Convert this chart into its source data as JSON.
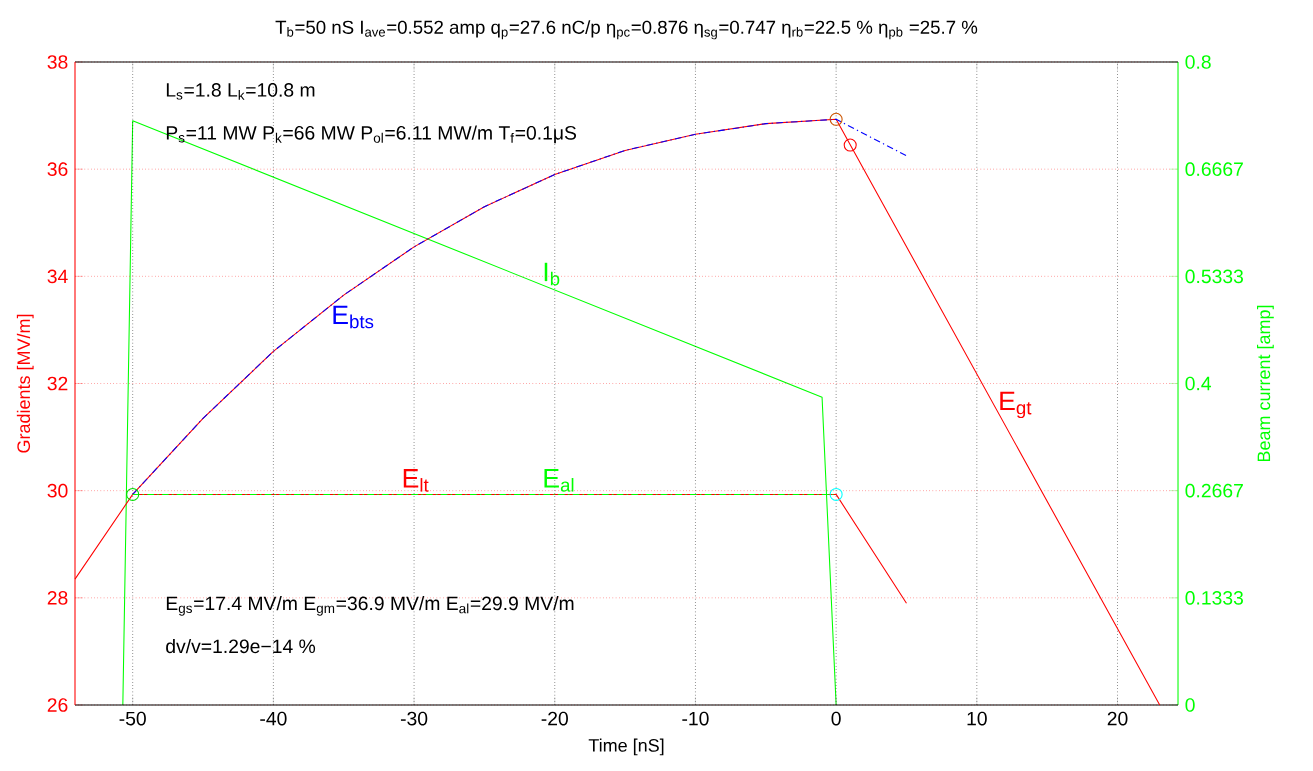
{
  "chart_data": {
    "type": "line",
    "title": "T$_{b}$=50 nS  I$_{ave}$=0.552 amp   q$_{p}$=27.6 nC/p  η$_{pc}$=0.876  η$_{sg}$=0.747  η$_{rb}$=22.5 %   η$_{pb}$ =25.7 %",
    "xlabel": "Time [nS]",
    "ylabel": "Gradients [MV/m]",
    "y2label": "Beam current [amp]",
    "annotations": [
      "L$_{s}$=1.8  L$_{k}$=10.8 m",
      "P$_{s}$=11 MW  P$_{k}$=66 MW   P$_{ol}$=6.11 MW/m  T$_{f}$=0.1μS",
      "E$_{gs}$=17.4 MV/m E$_{gm}$=36.9 MV/m   E$_{al}$=29.9 MV/m",
      "dv/v=1.29e−14 %"
    ],
    "xlim": [
      -54.1,
      24.3
    ],
    "xticks": [
      -50,
      -40,
      -30,
      -20,
      -10,
      0,
      10,
      20
    ],
    "ylim": [
      26,
      38
    ],
    "yticks": [
      26,
      28,
      30,
      32,
      34,
      36,
      38
    ],
    "y2lim": [
      0,
      0.8
    ],
    "y2ticks": [
      0,
      0.1333,
      0.2667,
      0.4,
      0.5333,
      0.6667,
      0.8
    ],
    "grid": true,
    "series": [
      {
        "name": "E$_{gt}$",
        "color": "#ff0000",
        "x": [
          -54.1,
          -50,
          -45,
          -40,
          -35,
          -30,
          -25,
          -20,
          -15,
          -10,
          -5,
          0,
          23
        ],
        "values": [
          28.35,
          29.93,
          31.35,
          32.6,
          33.65,
          34.55,
          35.3,
          35.9,
          36.35,
          36.65,
          36.85,
          36.93,
          26
        ]
      },
      {
        "name": "E$_{lt}$",
        "color": "#ff0000",
        "x": [
          -50,
          0,
          5
        ],
        "values": [
          29.93,
          29.93,
          27.9
        ]
      },
      {
        "name": "E$_{bts}$",
        "color": "#0000ff",
        "line_style": "dashed",
        "x": [
          -50,
          -45,
          -40,
          -35,
          -30,
          -25,
          -20,
          -15,
          -10,
          -5,
          0,
          5
        ],
        "values": [
          29.93,
          31.35,
          32.6,
          33.65,
          34.55,
          35.3,
          35.9,
          36.35,
          36.65,
          36.85,
          36.93,
          36.25
        ]
      },
      {
        "name": "E$_{al}$",
        "color": "#00ff00",
        "line_style": "dashed",
        "x": [
          -50,
          0
        ],
        "values": [
          29.93,
          29.93
        ]
      },
      {
        "name": "I$_{b}$",
        "color": "#00ff00",
        "axis": "y2",
        "x": [
          -50.7,
          -50,
          -1,
          0
        ],
        "values": [
          0,
          0.727,
          0.383,
          0
        ]
      },
      {
        "type": "scatter",
        "marker": "circle",
        "x": [
          -50,
          0,
          1,
          0
        ],
        "values": [
          29.93,
          36.93,
          36.45,
          29.93
        ],
        "colors": [
          "#00dd00",
          "#cc5500",
          "#ff0000",
          "#00ffff"
        ]
      }
    ]
  }
}
